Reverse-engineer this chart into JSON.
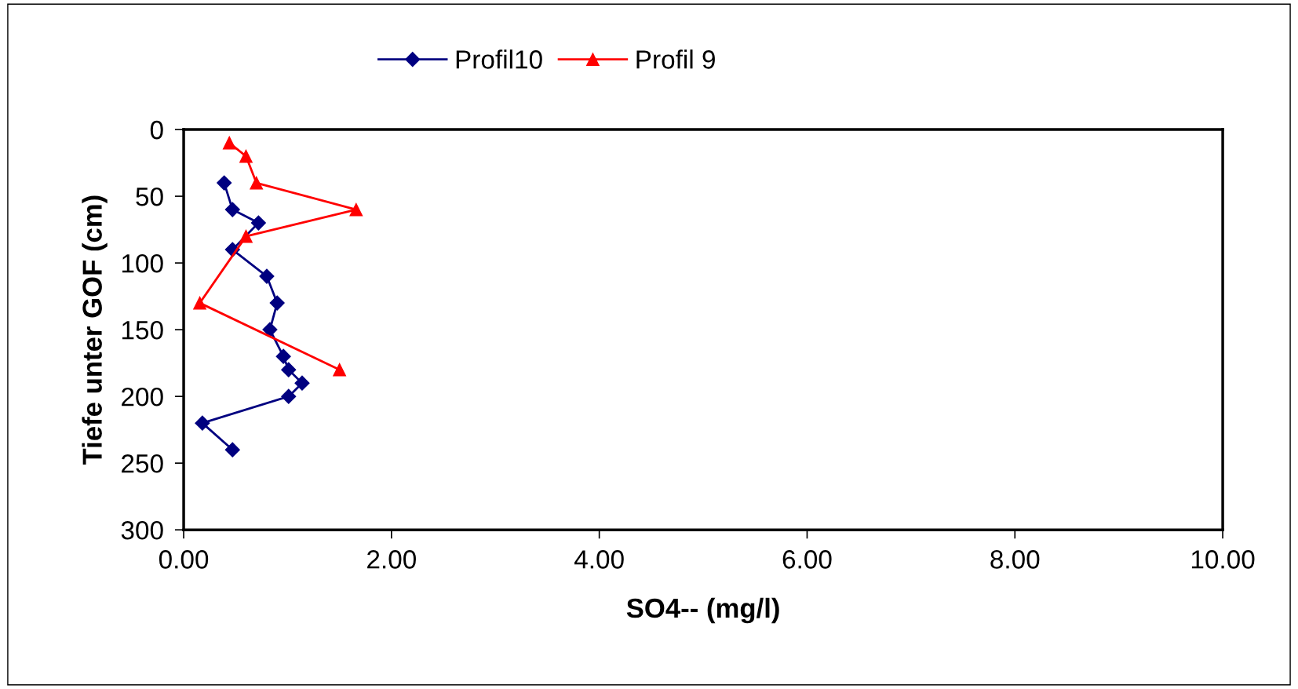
{
  "chart_data": {
    "type": "line",
    "xlabel": "SO4-- (mg/l)",
    "ylabel": "Tiefe unter GOF (cm)",
    "series": [
      {
        "name": "Profil10",
        "color": "#000080",
        "marker": "diamond",
        "x": [
          0.39,
          0.47,
          0.72,
          0.47,
          0.8,
          0.9,
          0.83,
          0.96,
          1.01,
          1.14,
          1.01,
          0.18,
          0.47
        ],
        "values": [
          40,
          60,
          70,
          90,
          110,
          130,
          150,
          170,
          180,
          190,
          200,
          220,
          240
        ]
      },
      {
        "name": "Profil 9",
        "color": "#ff0000",
        "marker": "triangle",
        "x": [
          0.44,
          0.6,
          0.7,
          1.66,
          0.6,
          0.155,
          1.5
        ],
        "values": [
          10,
          20,
          40,
          60,
          80,
          130,
          180
        ]
      }
    ],
    "xlim": [
      0,
      10
    ],
    "xticks": [
      {
        "value": 0,
        "label": "0.00"
      },
      {
        "value": 2,
        "label": "2.00"
      },
      {
        "value": 4,
        "label": "4.00"
      },
      {
        "value": 6,
        "label": "6.00"
      },
      {
        "value": 8,
        "label": "8.00"
      },
      {
        "value": 10,
        "label": "10.00"
      }
    ],
    "ylim": [
      300,
      0
    ],
    "yticks": [
      0,
      50,
      100,
      150,
      200,
      250,
      300
    ],
    "grid": false,
    "legend": "top",
    "line_style": "solid"
  }
}
